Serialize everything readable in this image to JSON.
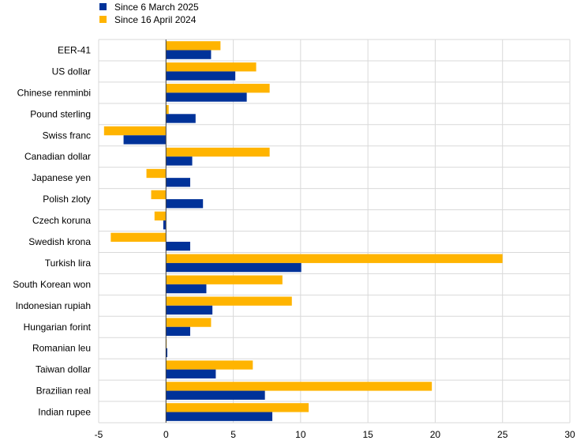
{
  "chart_data": {
    "type": "bar",
    "orientation": "horizontal",
    "title": "",
    "xlabel": "",
    "ylabel": "",
    "xlim": [
      -5,
      30
    ],
    "xticks": [
      -5,
      0,
      5,
      10,
      15,
      20,
      25,
      30
    ],
    "grid": true,
    "legend_position": "top-left",
    "categories": [
      "EER-41",
      "US dollar",
      "Chinese renminbi",
      "Pound sterling",
      "Swiss franc",
      "Canadian dollar",
      "Japanese yen",
      "Polish zloty",
      "Czech koruna",
      "Swedish krona",
      "Turkish lira",
      "South Korean won",
      "Indonesian rupiah",
      "Hungarian forint",
      "Romanian leu",
      "Taiwan dollar",
      "Brazilian real",
      "Indian rupee"
    ],
    "series": [
      {
        "name": "Since 6 March 2025",
        "color": "#003299",
        "values": [
          3.35,
          5.15,
          6.0,
          2.2,
          -3.15,
          1.95,
          1.8,
          2.75,
          -0.2,
          1.8,
          10.05,
          3.0,
          3.45,
          1.8,
          0.1,
          3.7,
          7.35,
          7.9
        ]
      },
      {
        "name": "Since 16 April 2024",
        "color": "#FFB400",
        "values": [
          4.05,
          6.7,
          7.7,
          0.2,
          -4.6,
          7.7,
          -1.45,
          -1.1,
          -0.85,
          -4.1,
          25.0,
          8.65,
          9.35,
          3.35,
          0.05,
          6.45,
          19.75,
          10.6
        ]
      }
    ]
  }
}
